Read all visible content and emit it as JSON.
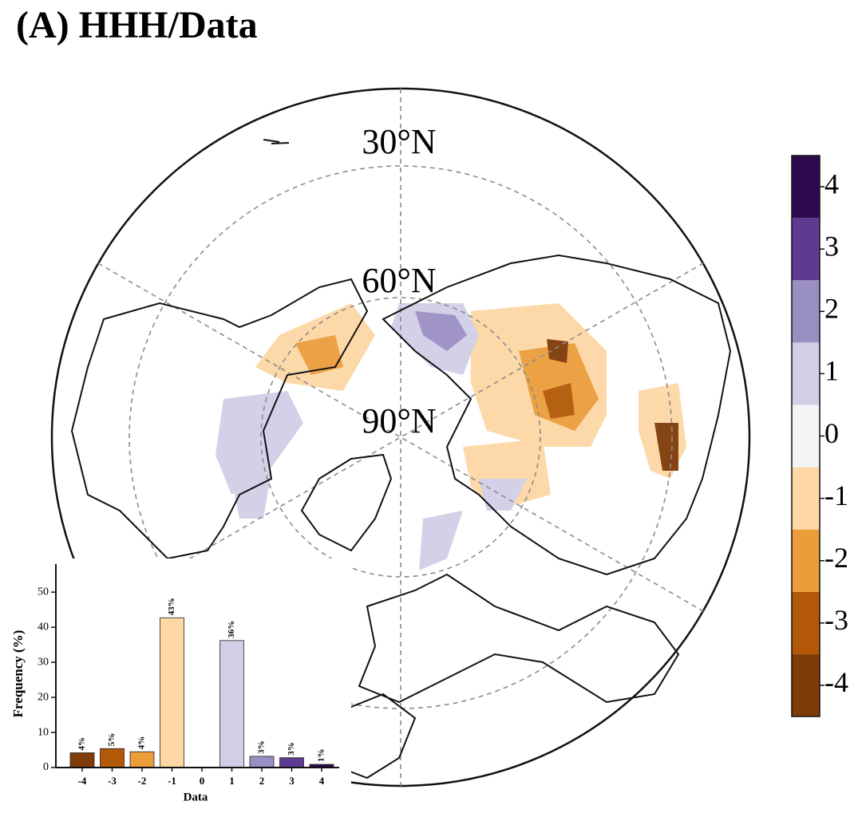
{
  "title": "(A) HHH/Data",
  "map": {
    "lat_labels": [
      "30°N",
      "60°N",
      "90°N"
    ]
  },
  "colorbar": {
    "lim": [
      -4.5,
      4.5
    ],
    "ticks": [
      -4,
      -3,
      -2,
      -1,
      0,
      1,
      2,
      3,
      4
    ],
    "colors": [
      "#7f3b08",
      "#b35806",
      "#eb9d3a",
      "#fdd8a5",
      "#f4f4f7",
      "#d0cfe6",
      "#9a8fc2",
      "#5e3a92",
      "#2d0a4e"
    ]
  },
  "chart_data": {
    "type": "bar",
    "xlabel": "Data",
    "ylabel": "Frequency (%)",
    "categories": [
      -4,
      -3,
      -2,
      -1,
      0,
      1,
      2,
      3,
      4
    ],
    "values": [
      4.2,
      5.4,
      4.5,
      42.7,
      0,
      36.2,
      3.2,
      2.8,
      0.9
    ],
    "value_labels": [
      "4%",
      "5%",
      "4%",
      "43%",
      null,
      "36%",
      "3%",
      "3%",
      "1%"
    ],
    "colors": [
      "#7f3b08",
      "#b35806",
      "#eb9d3a",
      "#fdd8a5",
      "#f4f4f7",
      "#d0cfe6",
      "#9a8fc2",
      "#5e3a92",
      "#2d0a4e"
    ],
    "ylim": [
      0,
      58
    ],
    "yticks": [
      0,
      10,
      20,
      30,
      40,
      50
    ]
  }
}
